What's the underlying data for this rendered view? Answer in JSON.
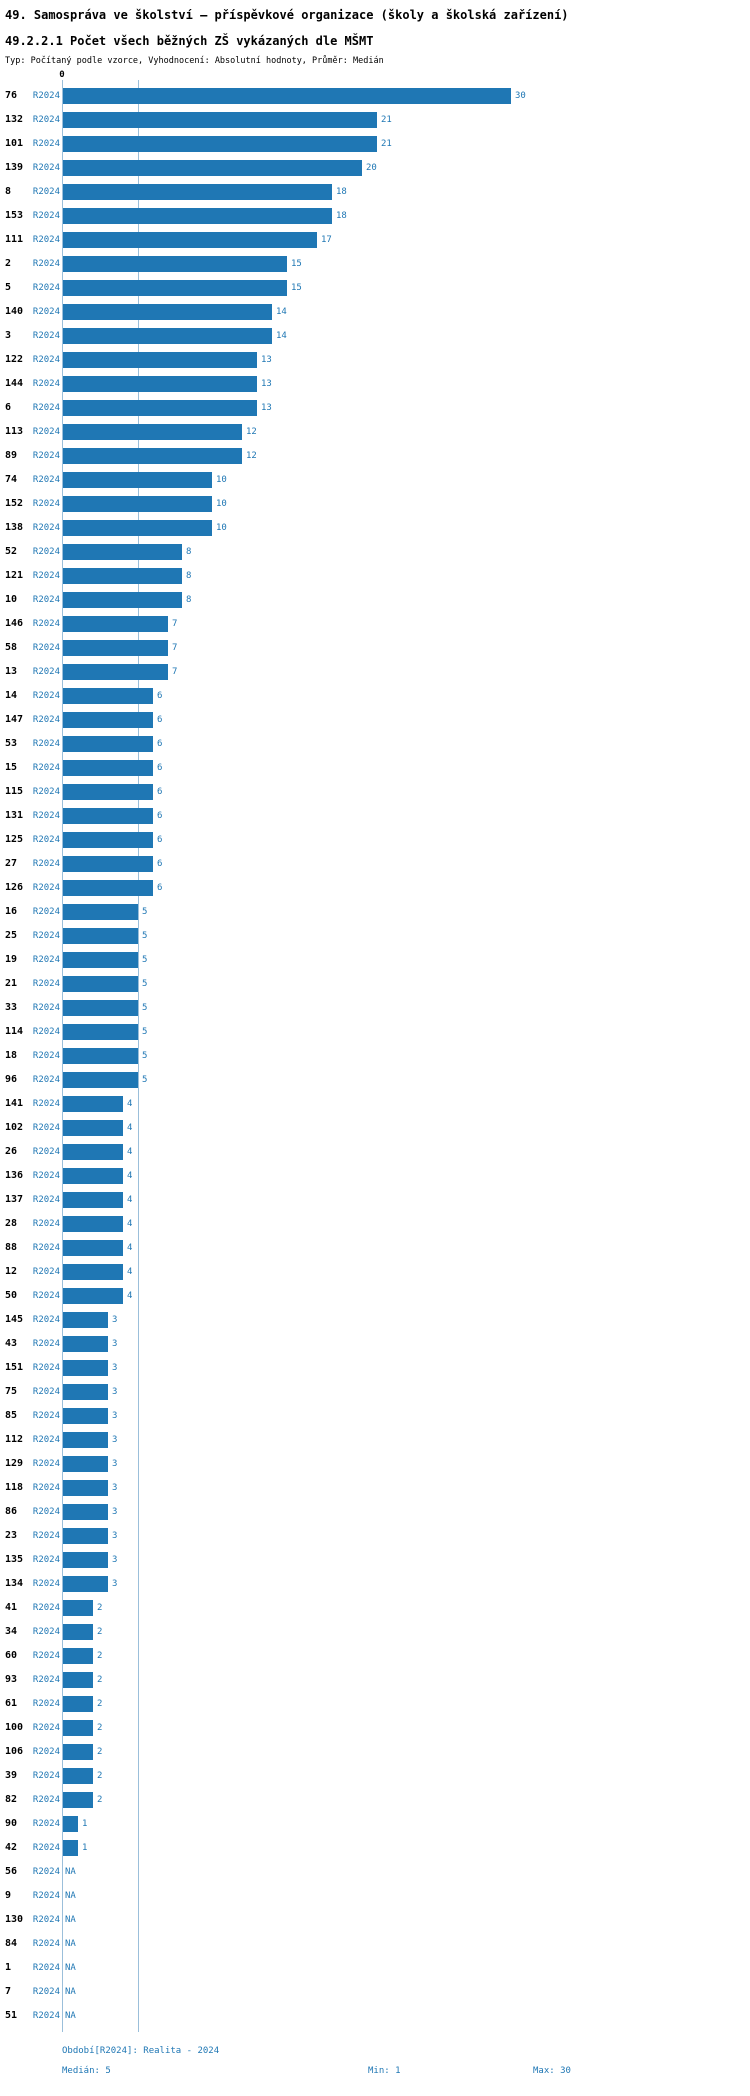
{
  "header": {
    "title_line1": "49. Samospráva ve školství – příspěvkové organizace (školy a školská zařízení)",
    "title_line2": "49.2.2.1 Počet všech běžných ZŠ vykázaných dle MŠMT",
    "meta": "Typ: Počítaný podle vzorce, Vyhodnocení: Absolutní hodnoty, Průměr: Medián"
  },
  "chart_data": {
    "type": "bar",
    "orientation": "horizontal",
    "title": "49.2.2.1 Počet všech běžných ZŠ vykázaných dle MŠMT",
    "series_label": "R2024",
    "axis_zero_label": "0",
    "na_label": "NA",
    "xlim": [
      0,
      30
    ],
    "median_line_value": 5,
    "legend_position": "none",
    "grid": false,
    "categories": [
      "76",
      "132",
      "101",
      "139",
      "8",
      "153",
      "111",
      "2",
      "5",
      "140",
      "3",
      "122",
      "144",
      "6",
      "113",
      "89",
      "74",
      "152",
      "138",
      "52",
      "121",
      "10",
      "146",
      "58",
      "13",
      "14",
      "147",
      "53",
      "15",
      "115",
      "131",
      "125",
      "27",
      "126",
      "16",
      "25",
      "19",
      "21",
      "33",
      "114",
      "18",
      "96",
      "141",
      "102",
      "26",
      "136",
      "137",
      "28",
      "88",
      "12",
      "50",
      "145",
      "43",
      "151",
      "75",
      "85",
      "112",
      "129",
      "118",
      "86",
      "23",
      "135",
      "134",
      "41",
      "34",
      "60",
      "93",
      "61",
      "100",
      "106",
      "39",
      "82",
      "90",
      "42",
      "56",
      "9",
      "130",
      "84",
      "1",
      "7",
      "51"
    ],
    "values": [
      30,
      21,
      21,
      20,
      18,
      18,
      17,
      15,
      15,
      14,
      14,
      13,
      13,
      13,
      12,
      12,
      10,
      10,
      10,
      8,
      8,
      8,
      7,
      7,
      7,
      6,
      6,
      6,
      6,
      6,
      6,
      6,
      6,
      6,
      5,
      5,
      5,
      5,
      5,
      5,
      5,
      5,
      4,
      4,
      4,
      4,
      4,
      4,
      4,
      4,
      4,
      3,
      3,
      3,
      3,
      3,
      3,
      3,
      3,
      3,
      3,
      3,
      3,
      2,
      2,
      2,
      2,
      2,
      2,
      2,
      2,
      2,
      1,
      1,
      null,
      null,
      null,
      null,
      null,
      null,
      null
    ]
  },
  "colors": {
    "bar": "#1f77b4",
    "label_blue": "#1f77b4",
    "axis_line": "#9bbfda",
    "text_black": "#000000"
  },
  "footer": {
    "period": "Období[R2024]: Realita - 2024",
    "median": "Medián: 5",
    "min": "Min: 1",
    "max": "Max: 30"
  }
}
